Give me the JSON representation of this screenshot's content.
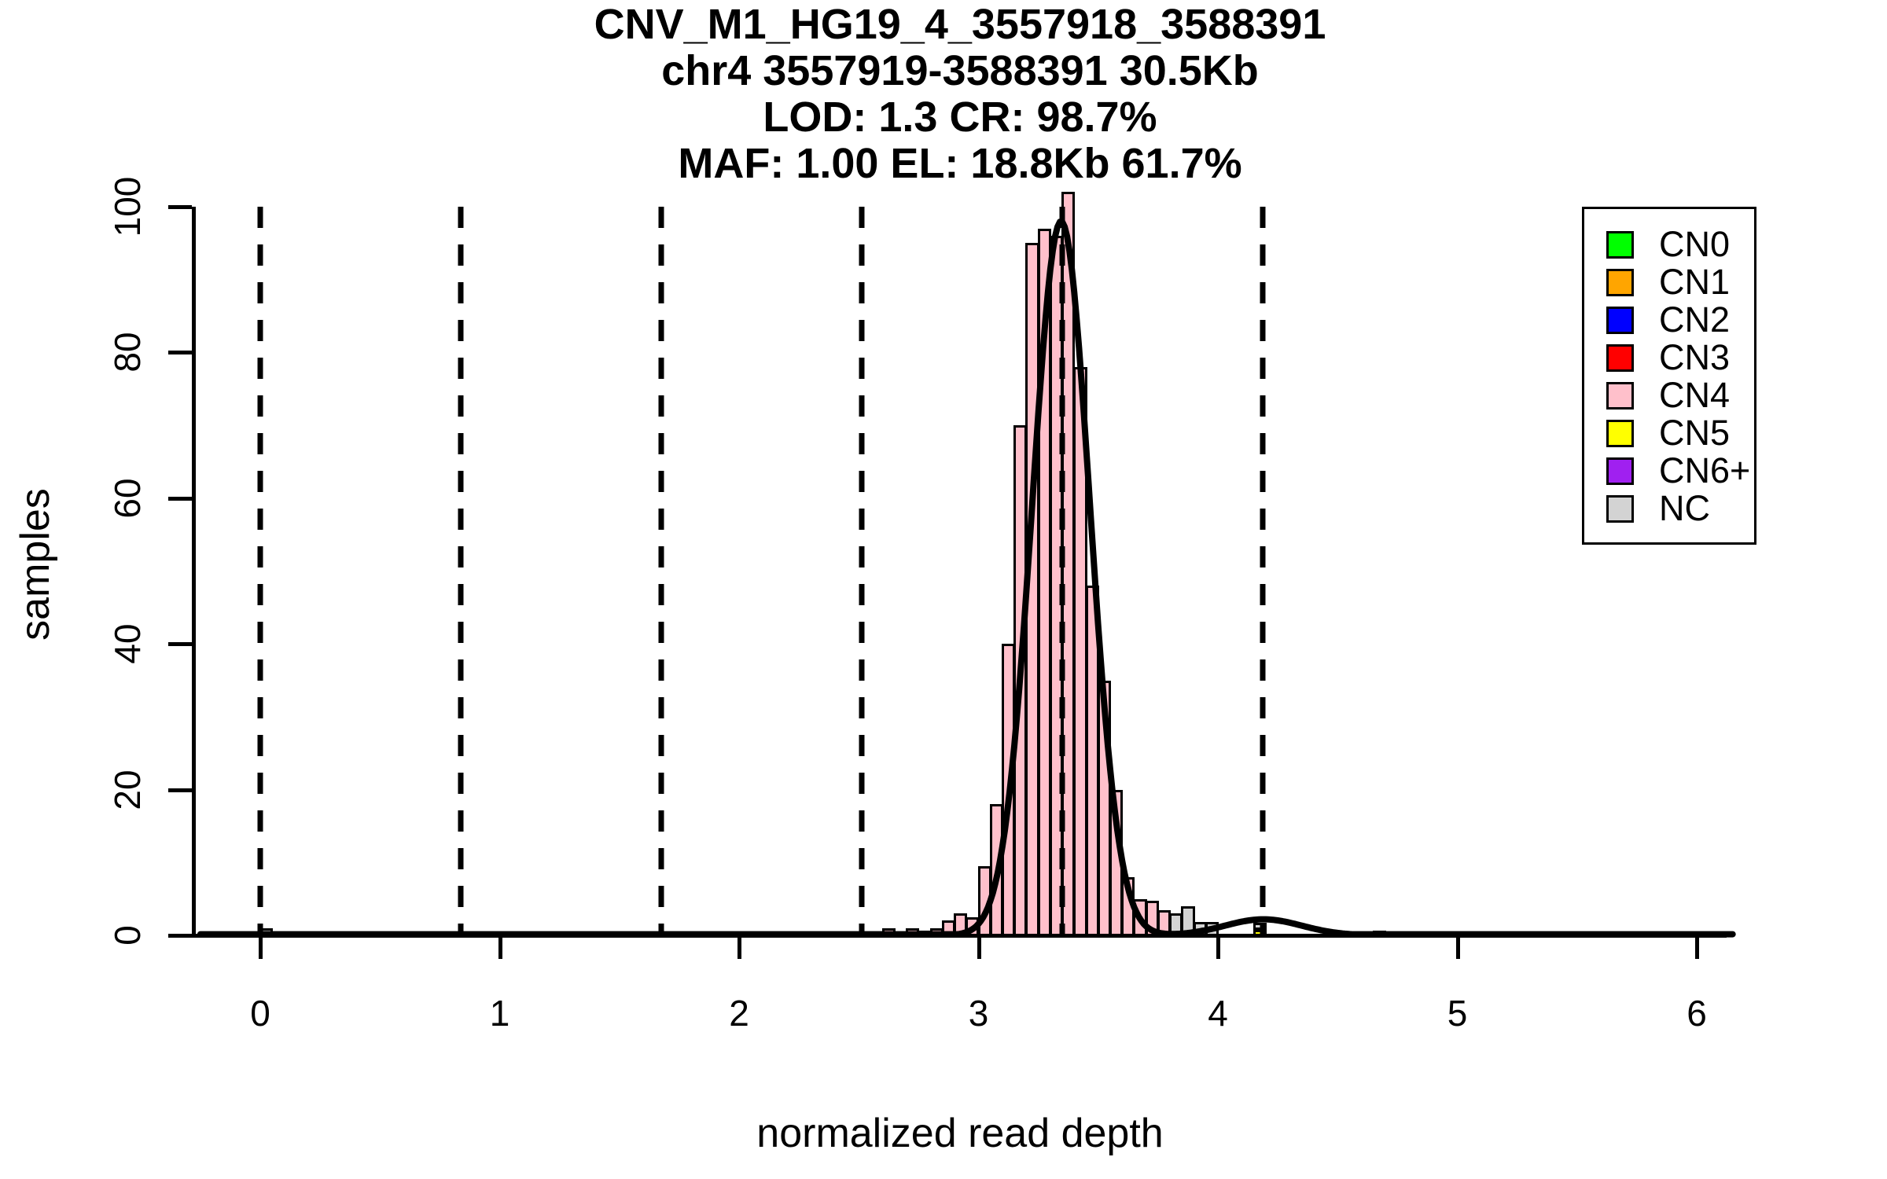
{
  "title": {
    "lines": [
      "CNV_M1_HG19_4_3557918_3588391",
      "chr4 3557919-3588391 30.5Kb",
      "LOD: 1.3 CR: 98.7%",
      "MAF: 1.00 EL: 18.8Kb 61.7%"
    ]
  },
  "legend": {
    "items": [
      {
        "label": "CN0",
        "color": "#00FF00"
      },
      {
        "label": "CN1",
        "color": "#FFA500"
      },
      {
        "label": "CN2",
        "color": "#0000FF"
      },
      {
        "label": "CN3",
        "color": "#FF0000"
      },
      {
        "label": "CN4",
        "color": "#FFC0CB"
      },
      {
        "label": "CN5",
        "color": "#FFFF00"
      },
      {
        "label": "CN6+",
        "color": "#A020F0"
      },
      {
        "label": "NC",
        "color": "#D3D3D3"
      }
    ]
  },
  "chart_data": {
    "type": "bar",
    "subtype": "histogram-with-density",
    "title_lines": [
      "CNV_M1_HG19_4_3557918_3588391",
      "chr4 3557919-3588391 30.5Kb",
      "LOD: 1.3 CR: 98.7%",
      "MAF: 1.00 EL: 18.8Kb 61.7%"
    ],
    "xlabel": "normalized read depth",
    "ylabel": "samples",
    "xlim": [
      -0.25,
      6.15
    ],
    "ylim": [
      0,
      102
    ],
    "x_ticks": [
      0,
      1,
      2,
      3,
      4,
      5,
      6
    ],
    "y_ticks": [
      0,
      20,
      40,
      60,
      80,
      100
    ],
    "grid": false,
    "legend_position": "top-right",
    "bin_width": 0.05,
    "bins": [
      {
        "x": -0.2,
        "h": 0.5,
        "cn": "NC"
      },
      {
        "x": -0.1,
        "h": 0.5,
        "cn": "NC"
      },
      {
        "x": 0.0,
        "h": 1.0,
        "cn": "NC"
      },
      {
        "x": 0.1,
        "h": 0.5,
        "cn": "NC"
      },
      {
        "x": 0.5,
        "h": 0.5,
        "cn": "NC"
      },
      {
        "x": 0.55,
        "h": 0.5,
        "cn": "NC"
      },
      {
        "x": 0.6,
        "h": 0.5,
        "cn": "NC"
      },
      {
        "x": 0.65,
        "h": 0.5,
        "cn": "NC"
      },
      {
        "x": 0.7,
        "h": 0.5,
        "cn": "NC"
      },
      {
        "x": 2.6,
        "h": 1.0,
        "cn": "CN4"
      },
      {
        "x": 2.7,
        "h": 1.0,
        "cn": "CN4"
      },
      {
        "x": 2.75,
        "h": 0.7,
        "cn": "CN4"
      },
      {
        "x": 2.8,
        "h": 1.0,
        "cn": "CN4"
      },
      {
        "x": 2.85,
        "h": 2.0,
        "cn": "CN4"
      },
      {
        "x": 2.9,
        "h": 3.0,
        "cn": "CN4"
      },
      {
        "x": 2.95,
        "h": 2.5,
        "cn": "CN4"
      },
      {
        "x": 3.0,
        "h": 9.5,
        "cn": "CN4"
      },
      {
        "x": 3.05,
        "h": 18,
        "cn": "CN4"
      },
      {
        "x": 3.1,
        "h": 40,
        "cn": "CN4"
      },
      {
        "x": 3.15,
        "h": 70,
        "cn": "CN4"
      },
      {
        "x": 3.2,
        "h": 95,
        "cn": "CN4"
      },
      {
        "x": 3.25,
        "h": 97,
        "cn": "CN4"
      },
      {
        "x": 3.3,
        "h": 96,
        "cn": "CN4"
      },
      {
        "x": 3.35,
        "h": 102,
        "cn": "CN4"
      },
      {
        "x": 3.4,
        "h": 78,
        "cn": "CN4"
      },
      {
        "x": 3.45,
        "h": 48,
        "cn": "CN4"
      },
      {
        "x": 3.5,
        "h": 35,
        "cn": "CN4"
      },
      {
        "x": 3.55,
        "h": 20,
        "cn": "CN4"
      },
      {
        "x": 3.6,
        "h": 8,
        "cn": "CN4"
      },
      {
        "x": 3.65,
        "h": 5,
        "cn": "CN4"
      },
      {
        "x": 3.7,
        "h": 4.8,
        "cn": "CN4"
      },
      {
        "x": 3.75,
        "h": 3.4,
        "cn": "CN4"
      },
      {
        "x": 3.8,
        "h": 3.0,
        "cn": "NC"
      },
      {
        "x": 3.85,
        "h": 4.0,
        "cn": "NC"
      },
      {
        "x": 3.9,
        "h": 1.8,
        "cn": "NC"
      },
      {
        "x": 3.95,
        "h": 1.8,
        "cn": "NC"
      },
      {
        "x": 4.15,
        "h": 0.8,
        "cn": "CN5"
      },
      {
        "x": 4.15,
        "h": 0.9,
        "cn": "NC",
        "base": 0.8
      },
      {
        "x": 4.65,
        "h": 0.7,
        "cn": "CN5"
      }
    ],
    "copy_number_dashed_lines": [
      {
        "cn": "CN0",
        "x": 0.0
      },
      {
        "cn": "CN1",
        "x": 0.8375
      },
      {
        "cn": "CN2",
        "x": 1.675
      },
      {
        "cn": "CN3",
        "x": 2.5125
      },
      {
        "cn": "CN4",
        "x": 3.35
      },
      {
        "cn": "CN5",
        "x": 4.1875
      }
    ],
    "density_curve": {
      "components": [
        {
          "mean": 3.345,
          "sd": 0.12,
          "peak": 98
        },
        {
          "mean": 4.19,
          "sd": 0.16,
          "peak": 2.2
        }
      ]
    },
    "colors": {
      "CN0": "#00FF00",
      "CN1": "#FFA500",
      "CN2": "#0000FF",
      "CN3": "#FF0000",
      "CN4": "#FFC0CB",
      "CN5": "#FFFF00",
      "CN6+": "#A020F0",
      "NC": "#D3D3D3",
      "curve": "#000000",
      "bar_border": "#000000",
      "axis": "#000000"
    }
  }
}
